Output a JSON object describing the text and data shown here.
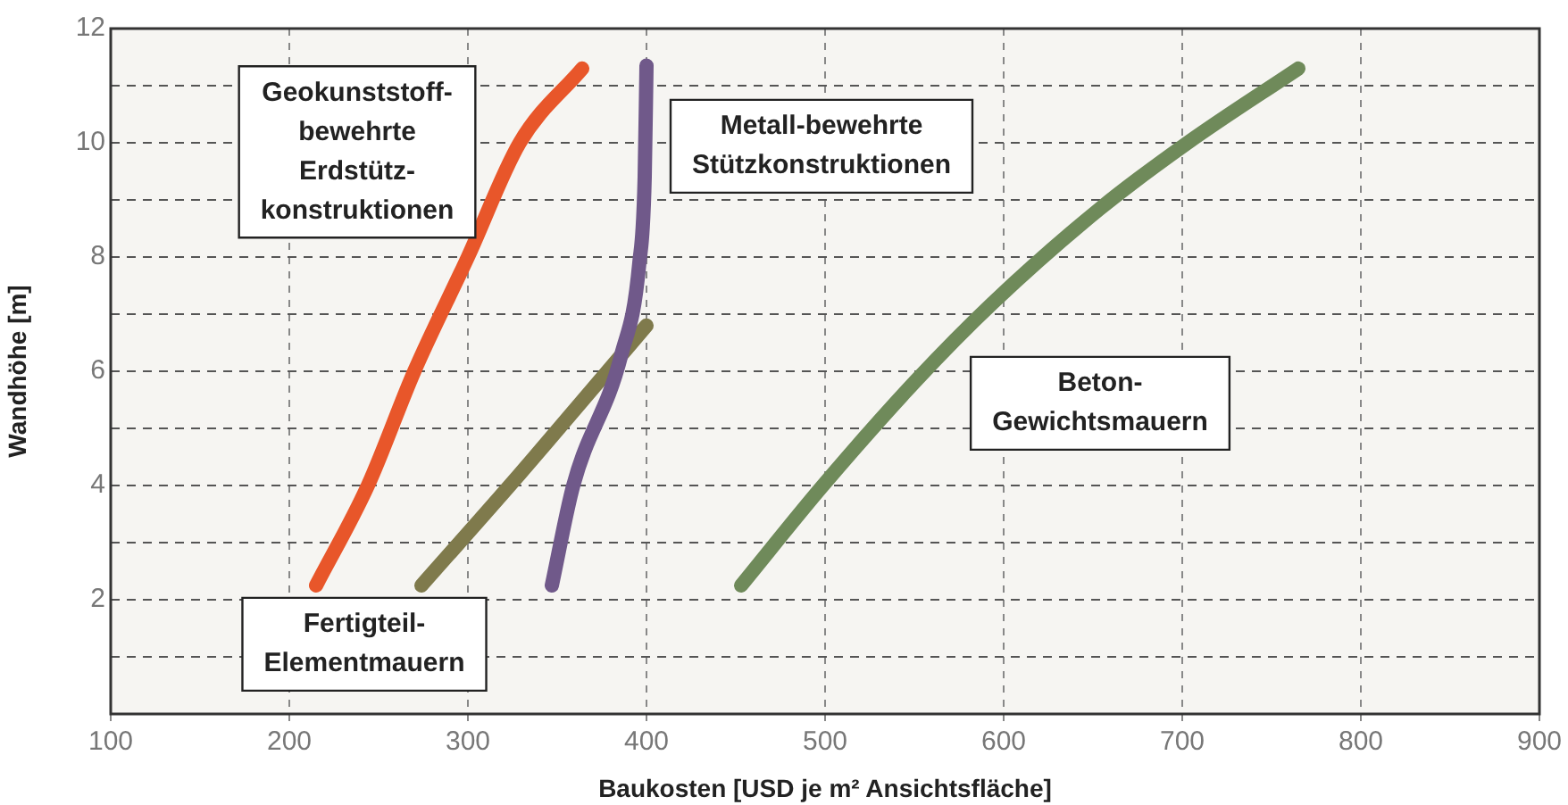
{
  "chart_data": {
    "type": "line",
    "xlabel": "Baukosten [USD je m² Ansichtsfläche]",
    "ylabel": "Wandhöhe [m]",
    "xlim": [
      100,
      900
    ],
    "xticks": [
      100,
      200,
      300,
      400,
      500,
      600,
      700,
      800,
      900
    ],
    "ylim": [
      0,
      12
    ],
    "yticks": [
      {
        "value": 1,
        "label": null
      },
      2,
      {
        "value": 3,
        "label": null
      },
      4,
      {
        "value": 5,
        "label": null
      },
      6,
      {
        "value": 7,
        "label": null
      },
      8,
      {
        "value": 9,
        "label": null
      },
      10,
      {
        "value": 11,
        "label": null
      },
      12
    ],
    "grid": true,
    "legend": false,
    "marker": "none",
    "line_style": "solid",
    "series": [
      {
        "name": "Geokunststoff-\nbewehrte\nErdstütz-\nkonstruktionen",
        "color": "#e8562a",
        "x": [
          215,
          244,
          270,
          300,
          329,
          364
        ],
        "values": [
          2.25,
          4,
          6,
          8,
          10,
          11.3
        ]
      },
      {
        "name": "Metall-bewehrte\nStützkonstruktionen",
        "color": "#70598a",
        "x": [
          347,
          359,
          386,
          396,
          399,
          400
        ],
        "values": [
          2.25,
          4,
          6.3,
          7.9,
          9.4,
          11.35
        ]
      },
      {
        "name": "Fertigteil-\nElementmauern",
        "color": "#7f7a4c",
        "x": [
          274,
          329,
          370,
          400
        ],
        "values": [
          2.25,
          4.2,
          5.7,
          6.8
        ]
      },
      {
        "name": "Beton-\nGewichtsmauern",
        "color": "#6f8a5a",
        "x": [
          453,
          498,
          551,
          594,
          654,
          703,
          765
        ],
        "values": [
          2.25,
          3.97,
          5.84,
          7.2,
          8.85,
          10,
          11.3
        ]
      }
    ]
  }
}
